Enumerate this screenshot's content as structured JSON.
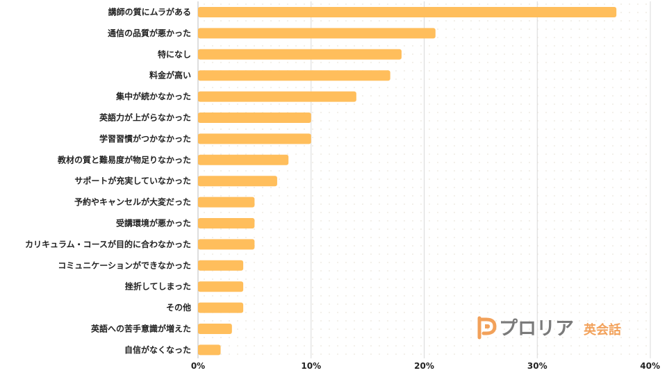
{
  "chart_data": {
    "type": "bar",
    "orientation": "horizontal",
    "categories": [
      "講師の質にムラがある",
      "通信の品質が悪かった",
      "特になし",
      "料金が高い",
      "集中が続かなかった",
      "英語力が上がらなかった",
      "学習習慣がつかなかった",
      "教材の質と難易度が物足りなかった",
      "サポートが充実していなかった",
      "予約やキャンセルが大変だった",
      "受講環境が悪かった",
      "カリキュラム・コースが目的に合わなかった",
      "コミュニケーションができなかった",
      "挫折してしまった",
      "その他",
      "英語への苦手意識が増えた",
      "自信がなくなった"
    ],
    "values": [
      37,
      21,
      18,
      17,
      14,
      10,
      10,
      8,
      7,
      5,
      5,
      5,
      4,
      4,
      4,
      3,
      2
    ],
    "xlim": [
      0,
      40
    ],
    "x_ticks": [
      0,
      10,
      20,
      30,
      40
    ],
    "x_tick_labels": [
      "0%",
      "10%",
      "20%",
      "30%",
      "40%"
    ],
    "grid": "vertical",
    "bar_color": "#FFBE5C",
    "grid_color": "#D9D9D9",
    "background_dot_color": "#F2EFE8"
  },
  "watermark": {
    "brand": "プロリア",
    "sub": "英会話",
    "brand_color": "#7A7A7A",
    "sub_color": "#F2A15A",
    "icon_color": "#F2A15A",
    "icon": "proria-p-logo-icon"
  }
}
